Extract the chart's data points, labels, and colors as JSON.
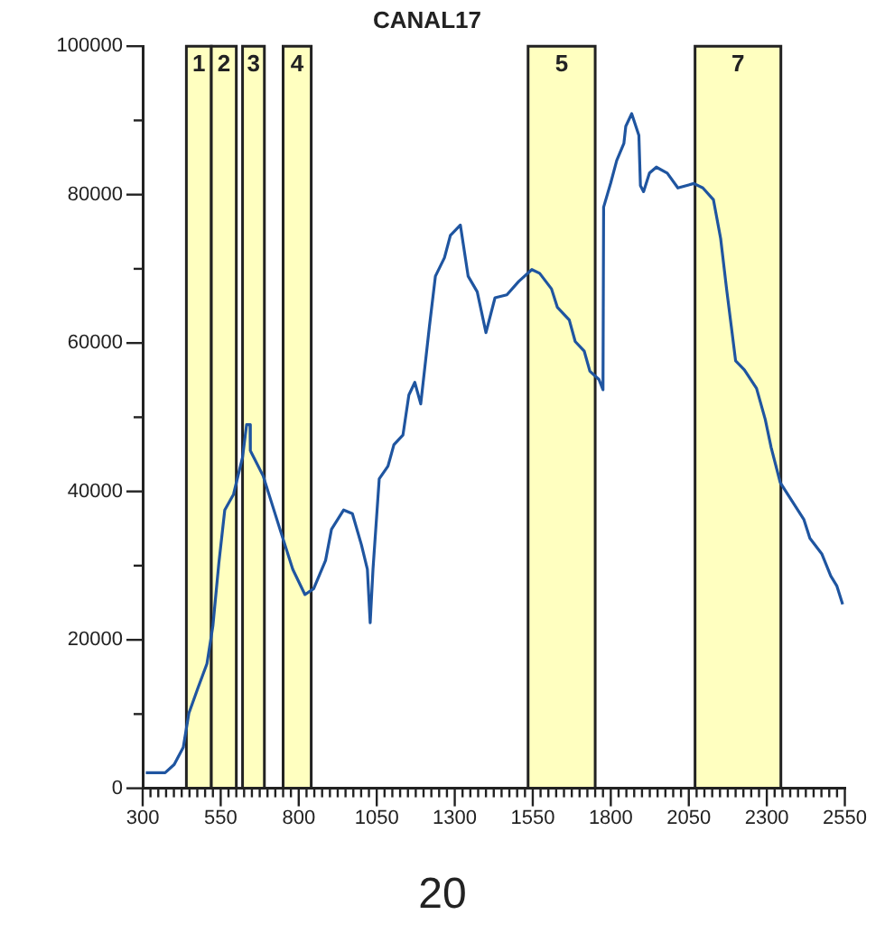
{
  "chart_data": {
    "type": "line",
    "title": "CANAL17",
    "annotations": [
      "20"
    ],
    "marker": "none",
    "grid": false,
    "xlim": [
      300,
      2550
    ],
    "ylim": [
      0,
      100000
    ],
    "yticks": [
      0,
      {
        "value": 10000,
        "label": null
      },
      20000,
      {
        "value": 30000,
        "label": null
      },
      40000,
      {
        "value": 50000,
        "label": null
      },
      60000,
      {
        "value": 70000,
        "label": null
      },
      80000,
      {
        "value": 90000,
        "label": null
      },
      100000
    ],
    "xticks": [
      300,
      {
        "value": 325,
        "label": null
      },
      {
        "value": 350,
        "label": null
      },
      {
        "value": 375,
        "label": null
      },
      {
        "value": 400,
        "label": null
      },
      {
        "value": 425,
        "label": null
      },
      {
        "value": 450,
        "label": null
      },
      {
        "value": 475,
        "label": null
      },
      {
        "value": 500,
        "label": null
      },
      {
        "value": 525,
        "label": null
      },
      550,
      {
        "value": 575,
        "label": null
      },
      {
        "value": 600,
        "label": null
      },
      {
        "value": 625,
        "label": null
      },
      {
        "value": 650,
        "label": null
      },
      {
        "value": 675,
        "label": null
      },
      {
        "value": 700,
        "label": null
      },
      {
        "value": 725,
        "label": null
      },
      {
        "value": 750,
        "label": null
      },
      {
        "value": 775,
        "label": null
      },
      800,
      {
        "value": 825,
        "label": null
      },
      {
        "value": 850,
        "label": null
      },
      {
        "value": 875,
        "label": null
      },
      {
        "value": 900,
        "label": null
      },
      {
        "value": 925,
        "label": null
      },
      {
        "value": 950,
        "label": null
      },
      {
        "value": 975,
        "label": null
      },
      {
        "value": 1000,
        "label": null
      },
      {
        "value": 1025,
        "label": null
      },
      1050,
      {
        "value": 1075,
        "label": null
      },
      {
        "value": 1100,
        "label": null
      },
      {
        "value": 1125,
        "label": null
      },
      {
        "value": 1150,
        "label": null
      },
      {
        "value": 1175,
        "label": null
      },
      {
        "value": 1200,
        "label": null
      },
      {
        "value": 1225,
        "label": null
      },
      {
        "value": 1250,
        "label": null
      },
      {
        "value": 1275,
        "label": null
      },
      1300,
      {
        "value": 1325,
        "label": null
      },
      {
        "value": 1350,
        "label": null
      },
      {
        "value": 1375,
        "label": null
      },
      {
        "value": 1400,
        "label": null
      },
      {
        "value": 1425,
        "label": null
      },
      {
        "value": 1450,
        "label": null
      },
      {
        "value": 1475,
        "label": null
      },
      {
        "value": 1500,
        "label": null
      },
      {
        "value": 1525,
        "label": null
      },
      1550,
      {
        "value": 1575,
        "label": null
      },
      {
        "value": 1600,
        "label": null
      },
      {
        "value": 1625,
        "label": null
      },
      {
        "value": 1650,
        "label": null
      },
      {
        "value": 1675,
        "label": null
      },
      {
        "value": 1700,
        "label": null
      },
      {
        "value": 1725,
        "label": null
      },
      {
        "value": 1750,
        "label": null
      },
      {
        "value": 1775,
        "label": null
      },
      1800,
      {
        "value": 1825,
        "label": null
      },
      {
        "value": 1850,
        "label": null
      },
      {
        "value": 1875,
        "label": null
      },
      {
        "value": 1900,
        "label": null
      },
      {
        "value": 1925,
        "label": null
      },
      {
        "value": 1950,
        "label": null
      },
      {
        "value": 1975,
        "label": null
      },
      {
        "value": 2000,
        "label": null
      },
      {
        "value": 2025,
        "label": null
      },
      2050,
      {
        "value": 2075,
        "label": null
      },
      {
        "value": 2100,
        "label": null
      },
      {
        "value": 2125,
        "label": null
      },
      {
        "value": 2150,
        "label": null
      },
      {
        "value": 2175,
        "label": null
      },
      {
        "value": 2200,
        "label": null
      },
      {
        "value": 2225,
        "label": null
      },
      {
        "value": 2250,
        "label": null
      },
      {
        "value": 2275,
        "label": null
      },
      2300,
      {
        "value": 2325,
        "label": null
      },
      {
        "value": 2350,
        "label": null
      },
      {
        "value": 2375,
        "label": null
      },
      {
        "value": 2400,
        "label": null
      },
      {
        "value": 2425,
        "label": null
      },
      {
        "value": 2450,
        "label": null
      },
      {
        "value": 2475,
        "label": null
      },
      {
        "value": 2500,
        "label": null
      },
      {
        "value": 2525,
        "label": null
      },
      2550
    ],
    "bands": [
      {
        "axis": "x",
        "from": 440,
        "to": 520,
        "label": "1",
        "color": "#ffffc0"
      },
      {
        "axis": "x",
        "from": 520,
        "to": 600,
        "label": "2",
        "color": "#ffffc0"
      },
      {
        "axis": "x",
        "from": 620,
        "to": 690,
        "label": "3",
        "color": "#ffffc0"
      },
      {
        "axis": "x",
        "from": 750,
        "to": 840,
        "label": "4",
        "color": "#ffffc0"
      },
      {
        "axis": "x",
        "from": 1535,
        "to": 1750,
        "label": "5",
        "color": "#ffffc0"
      },
      {
        "axis": "x",
        "from": 2070,
        "to": 2345,
        "label": "7",
        "color": "#ffffc0"
      }
    ],
    "series": [
      {
        "color": "#1f55a0",
        "x": [
          310,
          372,
          401,
          430,
          448,
          477,
          506,
          525,
          544,
          563,
          591,
          620,
          633,
          644,
          645,
          686,
          743,
          781,
          820,
          848,
          886,
          905,
          944,
          972,
          1001,
          1020,
          1029,
          1038,
          1058,
          1086,
          1105,
          1134,
          1153,
          1172,
          1191,
          1219,
          1238,
          1267,
          1286,
          1318,
          1343,
          1372,
          1400,
          1429,
          1467,
          1505,
          1547,
          1572,
          1610,
          1629,
          1667,
          1686,
          1715,
          1733,
          1762,
          1775,
          1777,
          1800,
          1819,
          1842,
          1848,
          1867,
          1890,
          1895,
          1905,
          1924,
          1946,
          1981,
          2015,
          2066,
          2095,
          2129,
          2152,
          2171,
          2186,
          2200,
          2228,
          2267,
          2295,
          2314,
          2343,
          2381,
          2419,
          2438,
          2476,
          2505,
          2524,
          2543
        ],
        "values": [
          2100,
          2100,
          3200,
          5500,
          10100,
          13500,
          16800,
          21900,
          30300,
          37500,
          39600,
          44600,
          49000,
          49000,
          45500,
          42100,
          34500,
          29500,
          26100,
          26900,
          30700,
          34900,
          37500,
          37000,
          32800,
          29500,
          22300,
          29500,
          41700,
          43400,
          46300,
          47600,
          53000,
          54700,
          51800,
          62300,
          69000,
          71500,
          74500,
          75900,
          69000,
          66900,
          61400,
          66100,
          66500,
          68300,
          69900,
          69400,
          67300,
          64800,
          63100,
          60200,
          58900,
          56200,
          55100,
          53700,
          78300,
          81600,
          84600,
          86900,
          89200,
          90900,
          88000,
          81200,
          80400,
          82900,
          83700,
          82900,
          80900,
          81500,
          80900,
          79300,
          74100,
          67300,
          62300,
          57600,
          56400,
          53900,
          49700,
          45900,
          41200,
          38700,
          36200,
          33700,
          31600,
          28600,
          27300,
          24800
        ]
      }
    ]
  }
}
